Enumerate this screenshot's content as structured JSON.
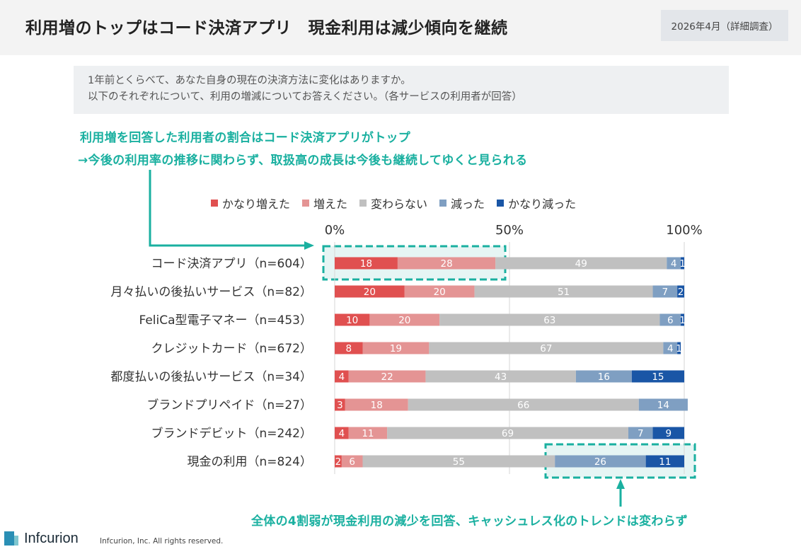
{
  "header": {
    "title": "利用増のトップはコード決済アプリ　現金利用は減少傾向を継続",
    "date": "2026年4月（詳細調査）"
  },
  "question": {
    "line1": "1年前とくらべて、あなた自身の現在の決済方法に変化はありますか。",
    "line2": "以下のそれぞれについて、利用の増減についてお答えください。（各サービスの利用者が回答）"
  },
  "insights": {
    "top1": "利用増を回答した利用者の割合はコード決済アプリがトップ",
    "top2": "→今後の利用率の推移に関わらず、取扱高の成長は今後も継続してゆくと見られる",
    "bottom": "全体の4割弱が現金利用の減少を回答、キャッシュレス化のトレンドは変わらず"
  },
  "footer": {
    "logo": "Infcurion",
    "copyright": "Infcurion, Inc.  All rights reserved."
  },
  "colors": {
    "accent": "#1ab0a0",
    "highlight_fill": "#e6f5f4"
  },
  "chart_data": {
    "type": "bar",
    "orientation": "horizontal",
    "stacked": true,
    "x_ticks": [
      "0%",
      "50%",
      "100%"
    ],
    "xlim": [
      0,
      100
    ],
    "legend_position": "top",
    "categories": [
      "コード決済アプリ（n=604）",
      "月々払いの後払いサービス（n=82）",
      "FeliCa型電子マネー（n=453）",
      "クレジットカード（n=672）",
      "都度払いの後払いサービス（n=34）",
      "ブランドプリペイド（n=27）",
      "ブランドデビット（n=242）",
      "現金の利用（n=824）"
    ],
    "series": [
      {
        "name": "かなり増えた",
        "color": "#e05050",
        "label_color": "#ffffff",
        "values": [
          18,
          20,
          10,
          8,
          4,
          3,
          4,
          2
        ]
      },
      {
        "name": "増えた",
        "color": "#e49494",
        "label_color": "#ffffff",
        "values": [
          28,
          20,
          20,
          19,
          22,
          18,
          11,
          6
        ]
      },
      {
        "name": "変わらない",
        "color": "#c0c0c0",
        "label_color": "#ffffff",
        "values": [
          49,
          51,
          63,
          67,
          43,
          66,
          69,
          55
        ]
      },
      {
        "name": "減った",
        "color": "#7f9fc2",
        "label_color": "#ffffff",
        "values": [
          4,
          7,
          6,
          4,
          16,
          14,
          7,
          26
        ]
      },
      {
        "name": "かなり減った",
        "color": "#1a56a6",
        "label_color": "#ffffff",
        "values": [
          1,
          2,
          1,
          1,
          15,
          0,
          9,
          11
        ]
      }
    ]
  }
}
